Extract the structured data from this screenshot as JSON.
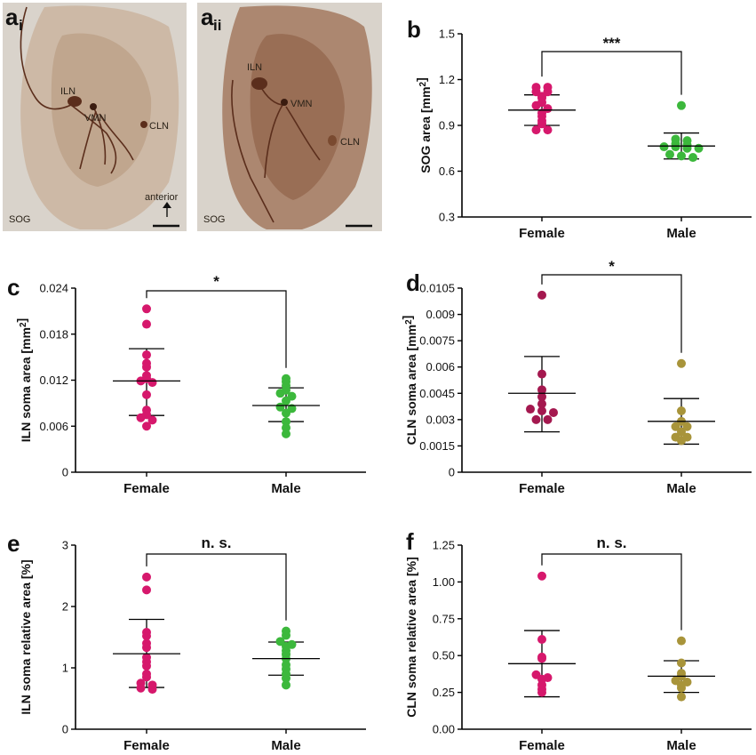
{
  "figure": {
    "micrographs": [
      {
        "letter": "a",
        "subscript": "i",
        "labels": {
          "iln": "ILN",
          "vmn": "VMN",
          "cln": "CLN",
          "sog": "SOG",
          "anterior": "anterior"
        },
        "colors": {
          "background": "#d9d3cb",
          "tissue": "#c8b09a",
          "neuron": "#5b2e1c"
        }
      },
      {
        "letter": "a",
        "subscript": "ii",
        "labels": {
          "iln": "ILN",
          "vmn": "VMN",
          "cln": "CLN",
          "sog": "SOG"
        },
        "colors": {
          "background": "#d9d3cb",
          "tissue": "#9c6d52",
          "neuron": "#5b2e1c"
        }
      }
    ]
  },
  "chart_data": [
    {
      "panel": "b",
      "type": "scatter",
      "ylabel": "SOG area  [mm²]",
      "categories": [
        "Female",
        "Male"
      ],
      "ylim": [
        0.3,
        1.5
      ],
      "yticks": [
        "0.3",
        "0.6",
        "0.9",
        "1.2",
        "1.5"
      ],
      "significance": "***",
      "series": [
        {
          "category": "Female",
          "color": "#d6186c",
          "values": [
            1.15,
            1.15,
            1.12,
            1.12,
            1.09,
            1.08,
            1.05,
            1.03,
            1.01,
            0.98,
            0.96,
            0.93,
            0.91,
            0.87,
            0.87
          ],
          "mean": 1.0,
          "sd_low": 0.9,
          "sd_high": 1.1
        },
        {
          "category": "Male",
          "color": "#3cb83c",
          "values": [
            1.03,
            0.81,
            0.8,
            0.78,
            0.77,
            0.76,
            0.76,
            0.75,
            0.75,
            0.71,
            0.7,
            0.69
          ],
          "mean": 0.765,
          "sd_low": 0.68,
          "sd_high": 0.85
        }
      ]
    },
    {
      "panel": "c",
      "type": "scatter",
      "ylabel": "ILN soma area  [mm²]",
      "categories": [
        "Female",
        "Male"
      ],
      "ylim": [
        0,
        0.024
      ],
      "yticks": [
        "0",
        "0.006",
        "0.012",
        "0.018",
        "0.024"
      ],
      "significance": "*",
      "series": [
        {
          "category": "Female",
          "color": "#d6186c",
          "values": [
            0.0213,
            0.0193,
            0.0153,
            0.0142,
            0.0137,
            0.0126,
            0.0122,
            0.0119,
            0.0117,
            0.0101,
            0.0081,
            0.0075,
            0.0071,
            0.0068,
            0.006
          ],
          "mean": 0.0119,
          "sd_low": 0.0074,
          "sd_high": 0.0161
        },
        {
          "category": "Male",
          "color": "#3cb83c",
          "values": [
            0.0122,
            0.0118,
            0.0113,
            0.0107,
            0.0103,
            0.0099,
            0.0093,
            0.0085,
            0.0083,
            0.0077,
            0.0066,
            0.0058,
            0.005
          ],
          "mean": 0.0087,
          "sd_low": 0.0066,
          "sd_high": 0.011
        }
      ]
    },
    {
      "panel": "d",
      "type": "scatter",
      "ylabel": "CLN soma  area  [mm²]",
      "categories": [
        "Female",
        "Male"
      ],
      "ylim": [
        0,
        0.0105
      ],
      "yticks": [
        "0",
        "0.0015",
        "0.003",
        "0.0045",
        "0.006",
        "0.0075",
        "0.009",
        "0.0105"
      ],
      "significance": "*",
      "series": [
        {
          "category": "Female",
          "color": "#a4184f",
          "values": [
            0.0101,
            0.0056,
            0.0047,
            0.0043,
            0.0039,
            0.0036,
            0.0035,
            0.0034,
            0.003,
            0.003
          ],
          "mean": 0.0045,
          "sd_low": 0.0023,
          "sd_high": 0.0066
        },
        {
          "category": "Male",
          "color": "#a8943a",
          "values": [
            0.0062,
            0.0035,
            0.0029,
            0.0026,
            0.0026,
            0.0023,
            0.002,
            0.002,
            0.0018
          ],
          "mean": 0.0029,
          "sd_low": 0.0016,
          "sd_high": 0.0042
        }
      ]
    },
    {
      "panel": "e",
      "type": "scatter",
      "ylabel": "ILN soma relative area [%]",
      "categories": [
        "Female",
        "Male"
      ],
      "ylim": [
        0,
        3
      ],
      "yticks": [
        "0",
        "1",
        "2",
        "3"
      ],
      "significance": "n. s.",
      "series": [
        {
          "category": "Female",
          "color": "#d6186c",
          "values": [
            2.48,
            2.27,
            1.58,
            1.52,
            1.4,
            1.33,
            1.17,
            1.1,
            1.03,
            0.9,
            0.85,
            0.75,
            0.72,
            0.67,
            0.65
          ],
          "mean": 1.23,
          "sd_low": 0.68,
          "sd_high": 1.79
        },
        {
          "category": "Male",
          "color": "#3cb83c",
          "values": [
            1.6,
            1.53,
            1.43,
            1.38,
            1.35,
            1.28,
            1.22,
            1.15,
            1.05,
            0.98,
            0.9,
            0.83,
            0.72
          ],
          "mean": 1.15,
          "sd_low": 0.88,
          "sd_high": 1.42
        }
      ]
    },
    {
      "panel": "f",
      "type": "scatter",
      "ylabel": "CLN soma relative area [%]",
      "categories": [
        "Female",
        "Male"
      ],
      "ylim": [
        0,
        1.25
      ],
      "yticks": [
        "0.00",
        "0.25",
        "0.50",
        "0.75",
        "1.00",
        "1.25"
      ],
      "significance": "n. s.",
      "series": [
        {
          "category": "Female",
          "color": "#d6186c",
          "values": [
            1.04,
            0.61,
            0.49,
            0.48,
            0.37,
            0.35,
            0.34,
            0.3,
            0.27,
            0.25
          ],
          "mean": 0.445,
          "sd_low": 0.22,
          "sd_high": 0.67
        },
        {
          "category": "Male",
          "color": "#a8943a",
          "values": [
            0.6,
            0.45,
            0.38,
            0.36,
            0.33,
            0.32,
            0.3,
            0.28,
            0.22
          ],
          "mean": 0.36,
          "sd_low": 0.25,
          "sd_high": 0.465
        }
      ]
    }
  ]
}
